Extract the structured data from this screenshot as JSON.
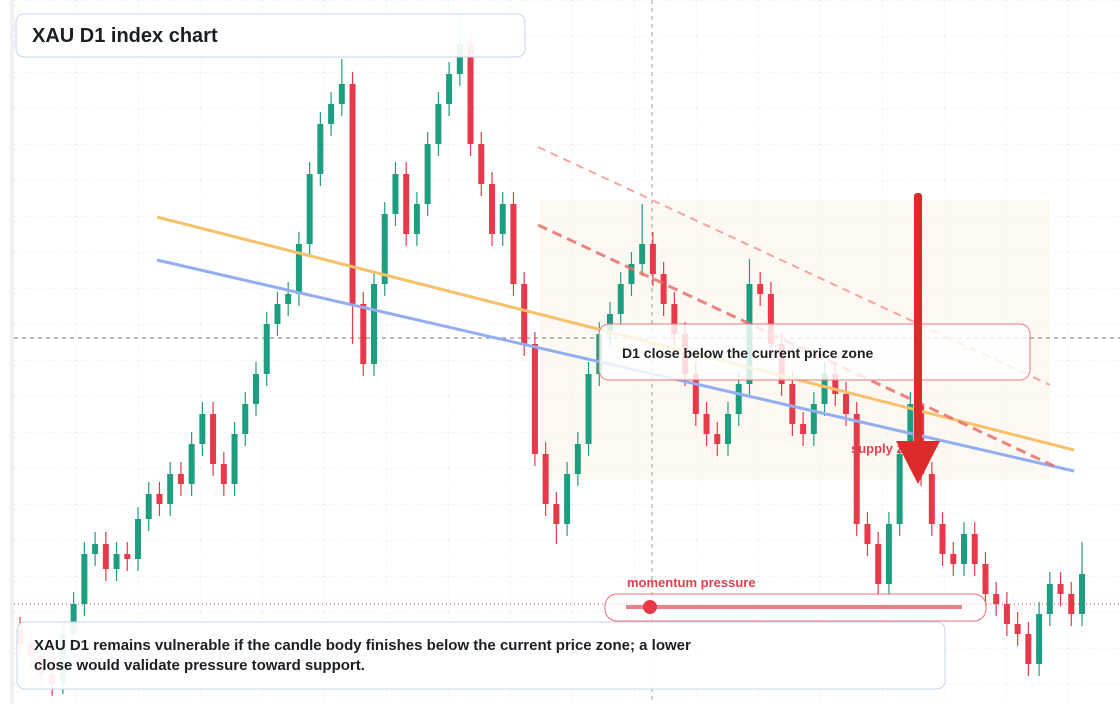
{
  "chart_data": {
    "type": "candlestick",
    "title": "XAU D1 index chart",
    "ylim": [
      0,
      704
    ],
    "up_color": "#1e9e80",
    "down_color": "#e8394a",
    "open": [
      75,
      60,
      48,
      30,
      20,
      70,
      100,
      150,
      160,
      135,
      150,
      145,
      185,
      210,
      200,
      230,
      220,
      260,
      290,
      240,
      220,
      270,
      300,
      330,
      380,
      400,
      410,
      460,
      530,
      580,
      600,
      620,
      400,
      340,
      420,
      490,
      530,
      470,
      500,
      560,
      600,
      630,
      660,
      560,
      520,
      470,
      500,
      420,
      360,
      250,
      200,
      180,
      230,
      260,
      330,
      370,
      390,
      420,
      440,
      460,
      430,
      400,
      370,
      330,
      290,
      270,
      260,
      290,
      320,
      420,
      410,
      360,
      320,
      280,
      270,
      300,
      330,
      310,
      290,
      180,
      160,
      120,
      180,
      250,
      300,
      230,
      180,
      150,
      140,
      170,
      140,
      110,
      100,
      80,
      70,
      40,
      90,
      120,
      110,
      90
    ],
    "high": [
      87,
      72,
      60,
      42,
      82,
      112,
      162,
      172,
      172,
      162,
      162,
      197,
      222,
      222,
      242,
      242,
      272,
      302,
      302,
      252,
      282,
      312,
      342,
      392,
      412,
      422,
      472,
      542,
      592,
      612,
      645,
      632,
      412,
      432,
      502,
      542,
      542,
      512,
      572,
      612,
      642,
      690,
      672,
      572,
      532,
      512,
      512,
      432,
      372,
      262,
      212,
      242,
      272,
      342,
      382,
      402,
      432,
      452,
      500,
      472,
      442,
      412,
      382,
      342,
      302,
      282,
      302,
      332,
      445,
      432,
      422,
      372,
      332,
      292,
      312,
      342,
      342,
      322,
      302,
      192,
      172,
      192,
      262,
      312,
      312,
      242,
      192,
      162,
      182,
      182,
      152,
      122,
      112,
      92,
      82,
      102,
      132,
      132,
      122,
      162
    ],
    "low": [
      48,
      36,
      18,
      8,
      10,
      58,
      88,
      138,
      123,
      123,
      133,
      133,
      173,
      188,
      188,
      208,
      208,
      248,
      228,
      208,
      208,
      258,
      288,
      318,
      368,
      388,
      398,
      448,
      518,
      568,
      588,
      360,
      328,
      328,
      408,
      478,
      458,
      458,
      488,
      548,
      588,
      618,
      548,
      508,
      458,
      458,
      408,
      348,
      238,
      188,
      160,
      168,
      218,
      248,
      318,
      358,
      378,
      408,
      428,
      418,
      388,
      358,
      318,
      278,
      258,
      248,
      248,
      278,
      308,
      398,
      348,
      308,
      268,
      258,
      258,
      288,
      298,
      278,
      168,
      148,
      108,
      108,
      168,
      238,
      218,
      168,
      138,
      128,
      128,
      128,
      98,
      88,
      68,
      58,
      28,
      28,
      78,
      98,
      78,
      78
    ],
    "close": [
      60,
      48,
      30,
      20,
      70,
      100,
      150,
      160,
      135,
      150,
      145,
      185,
      210,
      200,
      230,
      220,
      260,
      290,
      240,
      220,
      270,
      300,
      330,
      380,
      400,
      410,
      460,
      530,
      580,
      600,
      620,
      400,
      340,
      420,
      490,
      530,
      470,
      500,
      560,
      600,
      630,
      660,
      560,
      520,
      470,
      500,
      420,
      360,
      250,
      200,
      180,
      230,
      260,
      330,
      370,
      390,
      420,
      440,
      460,
      430,
      400,
      370,
      330,
      290,
      270,
      260,
      290,
      320,
      420,
      410,
      360,
      320,
      280,
      270,
      300,
      330,
      310,
      290,
      180,
      160,
      120,
      180,
      250,
      300,
      230,
      180,
      150,
      140,
      170,
      140,
      110,
      100,
      80,
      70,
      40,
      90,
      120,
      110,
      90,
      130
    ],
    "annotations": {
      "signal": "D1 close below the current price zone",
      "zone": "supply zone",
      "momentum": "momentum pressure",
      "note": "XAU D1 remains vulnerable if the candle body finishes below the current price zone; a lower close would validate pressure toward support."
    }
  }
}
